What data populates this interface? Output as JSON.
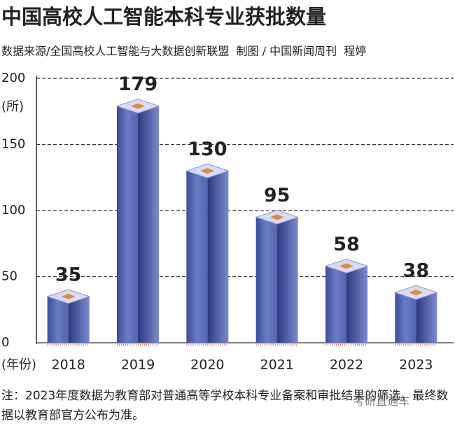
{
  "chart_data": {
    "type": "bar",
    "title": "中国高校人工智能本科专业获批数量",
    "subtitle": "数据来源/全国高校人工智能与大数据创新联盟  制图 / 中国新闻周刊  程婷",
    "y_label": "(所)",
    "x_label": "(年份)",
    "categories": [
      "2018",
      "2019",
      "2020",
      "2021",
      "2022",
      "2023"
    ],
    "values": [
      35,
      179,
      130,
      95,
      58,
      38
    ],
    "color": "#4a5aa8",
    "ylim": [
      0,
      200
    ],
    "yticks": [
      0,
      50,
      100,
      150,
      200
    ],
    "grid": true,
    "note": "注：2023年度数据为教育部对普通高等学校本科专业备案和审批结果的筛选，最终数据以教育部官方公布为准。",
    "watermark": "考研直通车"
  }
}
